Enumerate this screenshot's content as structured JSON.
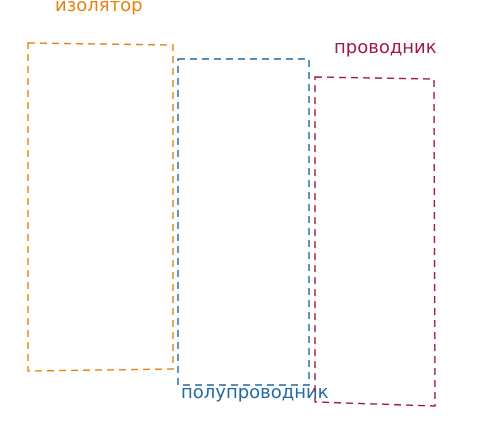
{
  "regions": [
    {
      "id": "insulator",
      "label": "изолятор",
      "color": "#e8820c"
    },
    {
      "id": "semiconductor",
      "label": "полупроводник",
      "color": "#1f6aa5"
    },
    {
      "id": "conductor",
      "label": "проводник",
      "color": "#a3184a"
    }
  ]
}
